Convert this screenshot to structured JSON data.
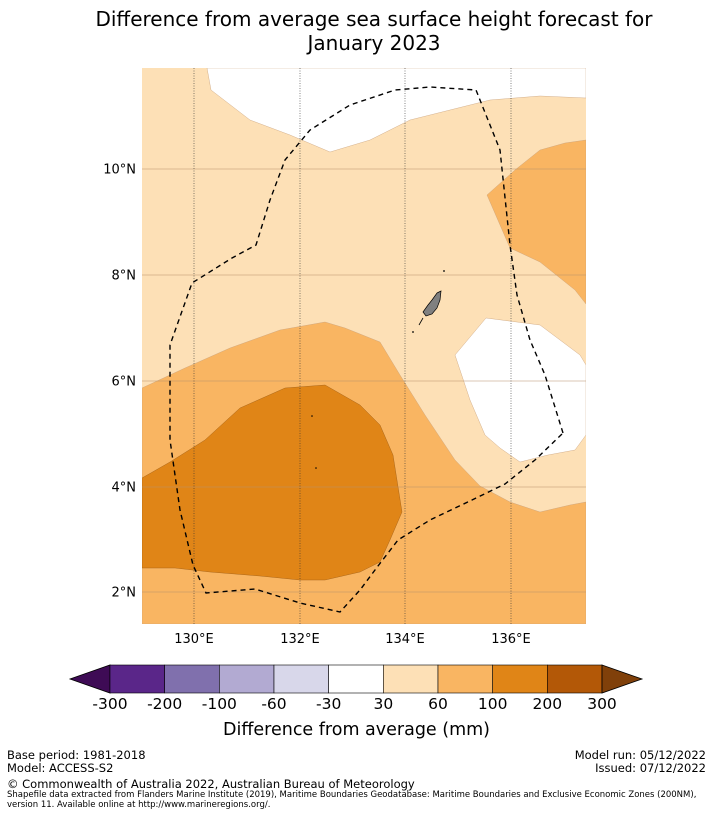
{
  "title_line1": "Difference from average sea surface height forecast for",
  "title_line2": "January 2023",
  "map": {
    "lat_labels": [
      "10°N",
      "8°N",
      "6°N",
      "4°N",
      "2°N"
    ],
    "lon_labels": [
      "130°E",
      "132°E",
      "134°E",
      "136°E"
    ]
  },
  "legend": {
    "ticks": [
      "-300",
      "-200",
      "-100",
      "-60",
      "-30",
      "30",
      "60",
      "100",
      "200",
      "300"
    ],
    "colors": [
      "#3e0b55",
      "#5a2689",
      "#8070ad",
      "#b2aad2",
      "#d8d7ea",
      "#ffffff",
      "#fde0b6",
      "#f9b562",
      "#e08517",
      "#b35807",
      "#80400a"
    ],
    "label": "Difference from average (mm)"
  },
  "footer": {
    "base_period": "Base period: 1981-2018",
    "model": "Model: ACCESS-S2",
    "model_run": "Model run: 05/12/2022",
    "issued": "Issued: 07/12/2022",
    "copyright": "© Commonwealth of Australia 2022, Australian Bureau of Meteorology",
    "shapefile_note": "Shapefile data extracted from Flanders Marine Institute (2019), Maritime Boundaries Geodatabase: Maritime Boundaries and Exclusive Economic Zones (200NM), version 11. Available online at http://www.marineregions.org/."
  }
}
